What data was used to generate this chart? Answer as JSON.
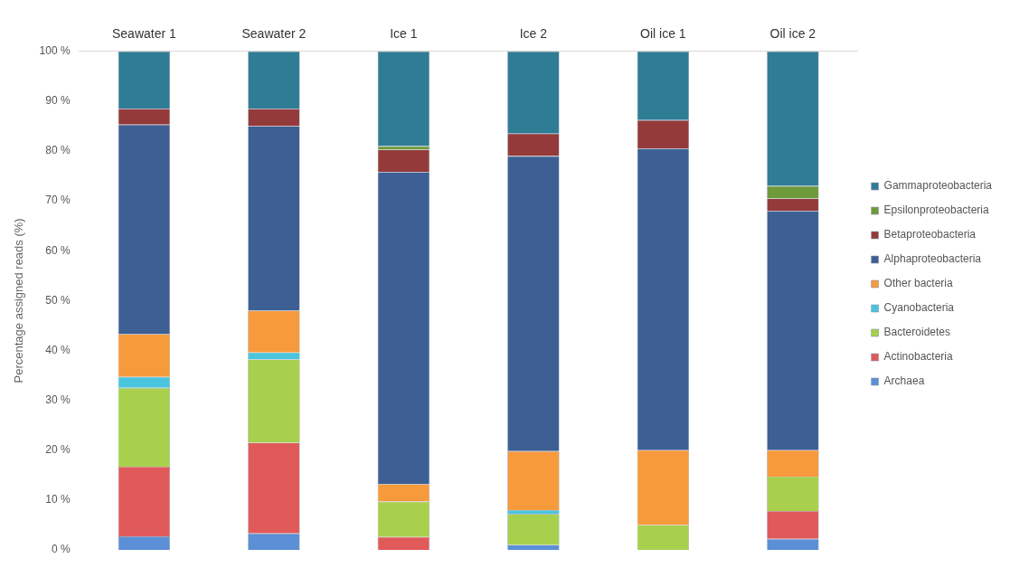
{
  "chart_data": {
    "type": "bar",
    "stacked": true,
    "categories": [
      "Seawater 1",
      "Seawater 2",
      "Ice 1",
      "Ice 2",
      "Oil ice 1",
      "Oil ice 2"
    ],
    "ylabel": "Percentage assigned reads (%)",
    "ylim": [
      0,
      100
    ],
    "yticks": [
      {
        "value": 0,
        "label": "0 %"
      },
      {
        "value": 10,
        "label": "10 %"
      },
      {
        "value": 20,
        "label": "20 %"
      },
      {
        "value": 30,
        "label": "30 %"
      },
      {
        "value": 40,
        "label": "40 %"
      },
      {
        "value": 50,
        "label": "50 %"
      },
      {
        "value": 60,
        "label": "60 %"
      },
      {
        "value": 70,
        "label": "70 %"
      },
      {
        "value": 80,
        "label": "80 %"
      },
      {
        "value": 90,
        "label": "90 %"
      },
      {
        "value": 100,
        "label": "100 %"
      }
    ],
    "legend": "right",
    "series": [
      {
        "name": "Archaea",
        "color": "#5b8fd6",
        "values": [
          2.7,
          3.3,
          0,
          1.0,
          0,
          2.2
        ]
      },
      {
        "name": "Actinobacteria",
        "color": "#e05a5a",
        "values": [
          14.0,
          18.2,
          2.6,
          0,
          0,
          5.6
        ]
      },
      {
        "name": "Bacteroidetes",
        "color": "#a8d04d",
        "values": [
          15.8,
          16.7,
          7.1,
          6.2,
          5.0,
          6.9
        ]
      },
      {
        "name": "Cyanobacteria",
        "color": "#4bc4dd",
        "values": [
          2.2,
          1.4,
          0,
          0.8,
          0,
          0
        ]
      },
      {
        "name": "Other bacteria",
        "color": "#f79a3c",
        "values": [
          8.6,
          8.4,
          3.5,
          11.8,
          15.0,
          5.3
        ]
      },
      {
        "name": "Alphaproteobacteria",
        "color": "#3d5f94",
        "values": [
          42.0,
          37.0,
          62.6,
          59.2,
          60.5,
          48.0
        ]
      },
      {
        "name": "Betaproteobacteria",
        "color": "#943a3a",
        "values": [
          3.2,
          3.5,
          4.5,
          4.5,
          5.7,
          2.5
        ]
      },
      {
        "name": "Epsilonproteobacteria",
        "color": "#6f9a3c",
        "values": [
          0,
          0,
          0.7,
          0,
          0,
          2.5
        ]
      },
      {
        "name": "Gammaproteobacteria",
        "color": "#2f7c95",
        "values": [
          11.5,
          11.5,
          19.0,
          16.5,
          13.8,
          27.0
        ]
      }
    ]
  }
}
